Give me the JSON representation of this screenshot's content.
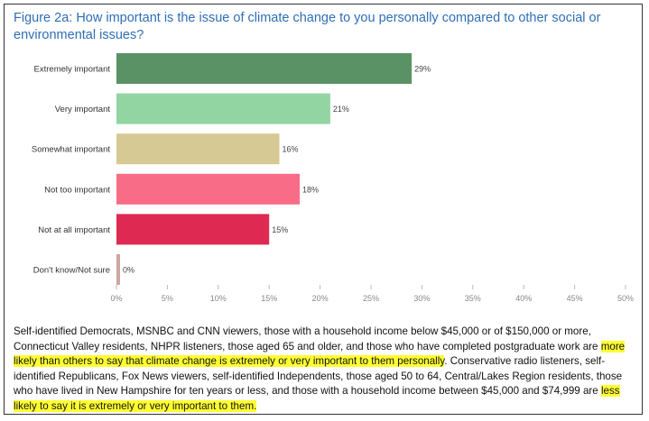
{
  "title": "Figure 2a: How important is the issue of climate change to you personally compared to other social or environmental issues?",
  "chart_data": {
    "type": "bar",
    "orientation": "horizontal",
    "categories": [
      "Extremely important",
      "Very important",
      "Somewhat important",
      "Not too important",
      "Not at all important",
      "Don't know/Not sure"
    ],
    "values": [
      29,
      21,
      16,
      18,
      15,
      0
    ],
    "value_labels": [
      "29%",
      "21%",
      "16%",
      "18%",
      "15%",
      "0%"
    ],
    "colors": [
      "#5b9265",
      "#93d4a3",
      "#d7c994",
      "#f96c87",
      "#de2a52",
      "#cba8a4"
    ],
    "xlim": [
      0,
      50
    ],
    "x_ticks": [
      0,
      5,
      10,
      15,
      20,
      25,
      30,
      35,
      40,
      45,
      50
    ],
    "x_tick_labels": [
      "0%",
      "5%",
      "10%",
      "15%",
      "20%",
      "25%",
      "30%",
      "35%",
      "40%",
      "45%",
      "50%"
    ],
    "xlabel": "",
    "ylabel": "",
    "grid": "vertical ticks only",
    "legend": "none"
  },
  "note": {
    "part1": "Self-identified Democrats, MSNBC and CNN viewers, those with a household income below $45,000 or of $150,000 or more, Connecticut Valley residents, NHPR listeners, those aged 65 and older, and those who have completed postgraduate work are ",
    "highlight1": "more likely than others to say that climate change is extremely or very important to them personally",
    "part2": ". Conservative radio listeners, self-identified Republicans, Fox News viewers, self-identified Independents, those aged 50 to 64, Central/Lakes Region residents, those who have lived in New Hampshire for ten years or less, and those with a household income between $45,000 and $74,999 are ",
    "highlight2": "less likely to say it is extremely or very important to them.",
    "part3": ""
  }
}
